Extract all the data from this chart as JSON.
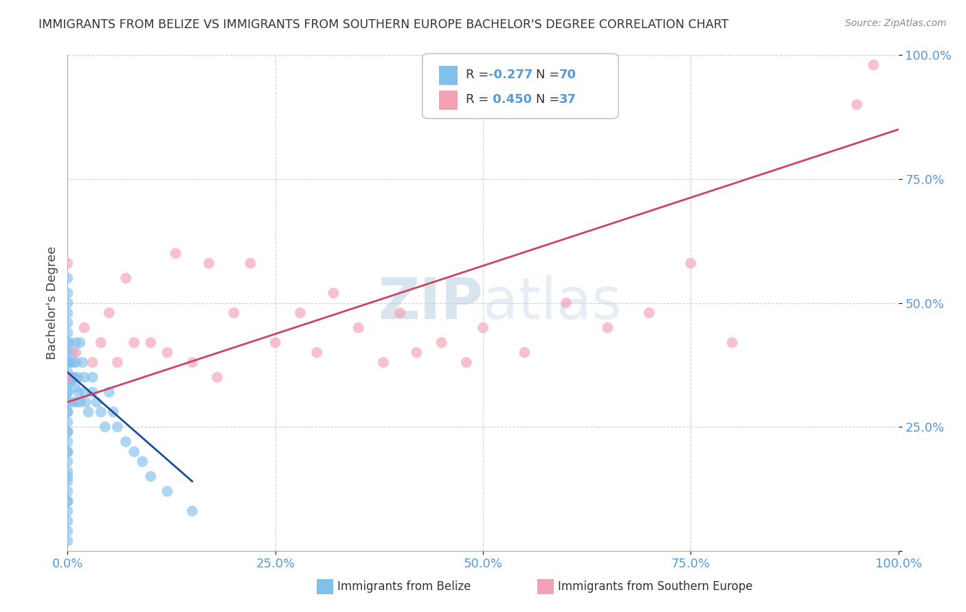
{
  "title": "IMMIGRANTS FROM BELIZE VS IMMIGRANTS FROM SOUTHERN EUROPE BACHELOR'S DEGREE CORRELATION CHART",
  "source": "Source: ZipAtlas.com",
  "ylabel": "Bachelor's Degree",
  "watermark": "ZIPatlas",
  "belize_color": "#82C0EC",
  "southern_color": "#F4A0B5",
  "belize_line_color": "#1A4A9A",
  "southern_line_color": "#D04060",
  "background_color": "#FFFFFF",
  "grid_color": "#CCCCCC",
  "title_color": "#333333",
  "tick_color": "#5599DD",
  "xlim": [
    0.0,
    1.0
  ],
  "ylim": [
    0.0,
    1.0
  ],
  "belize_scatter_x": [
    0.0,
    0.0,
    0.0,
    0.0,
    0.0,
    0.0,
    0.0,
    0.0,
    0.0,
    0.0,
    0.0,
    0.0,
    0.0,
    0.0,
    0.0,
    0.0,
    0.0,
    0.0,
    0.0,
    0.0,
    0.0,
    0.0,
    0.0,
    0.0,
    0.0,
    0.0,
    0.0,
    0.0,
    0.0,
    0.0,
    0.0,
    0.0,
    0.0,
    0.0,
    0.0,
    0.002,
    0.003,
    0.004,
    0.005,
    0.005,
    0.006,
    0.007,
    0.008,
    0.009,
    0.01,
    0.01,
    0.01,
    0.012,
    0.013,
    0.015,
    0.015,
    0.018,
    0.02,
    0.02,
    0.022,
    0.025,
    0.03,
    0.03,
    0.035,
    0.04,
    0.045,
    0.05,
    0.055,
    0.06,
    0.07,
    0.08,
    0.09,
    0.1,
    0.12,
    0.15
  ],
  "belize_scatter_y": [
    0.55,
    0.52,
    0.5,
    0.48,
    0.46,
    0.44,
    0.42,
    0.4,
    0.38,
    0.36,
    0.34,
    0.32,
    0.3,
    0.28,
    0.26,
    0.24,
    0.22,
    0.2,
    0.18,
    0.16,
    0.14,
    0.12,
    0.1,
    0.08,
    0.06,
    0.04,
    0.02,
    0.38,
    0.35,
    0.32,
    0.28,
    0.24,
    0.2,
    0.15,
    0.1,
    0.42,
    0.38,
    0.34,
    0.3,
    0.35,
    0.4,
    0.38,
    0.35,
    0.33,
    0.3,
    0.42,
    0.38,
    0.35,
    0.32,
    0.3,
    0.42,
    0.38,
    0.35,
    0.32,
    0.3,
    0.28,
    0.35,
    0.32,
    0.3,
    0.28,
    0.25,
    0.32,
    0.28,
    0.25,
    0.22,
    0.2,
    0.18,
    0.15,
    0.12,
    0.08
  ],
  "southern_scatter_x": [
    0.0,
    0.0,
    0.01,
    0.02,
    0.03,
    0.04,
    0.05,
    0.06,
    0.07,
    0.08,
    0.1,
    0.12,
    0.13,
    0.15,
    0.17,
    0.18,
    0.2,
    0.22,
    0.25,
    0.28,
    0.3,
    0.32,
    0.35,
    0.38,
    0.4,
    0.42,
    0.45,
    0.48,
    0.5,
    0.55,
    0.6,
    0.65,
    0.7,
    0.75,
    0.8,
    0.95,
    0.97
  ],
  "southern_scatter_y": [
    0.58,
    0.35,
    0.4,
    0.45,
    0.38,
    0.42,
    0.48,
    0.38,
    0.55,
    0.42,
    0.42,
    0.4,
    0.6,
    0.38,
    0.58,
    0.35,
    0.48,
    0.58,
    0.42,
    0.48,
    0.4,
    0.52,
    0.45,
    0.38,
    0.48,
    0.4,
    0.42,
    0.38,
    0.45,
    0.4,
    0.5,
    0.45,
    0.48,
    0.58,
    0.42,
    0.9,
    0.98
  ],
  "belize_line_x": [
    0.0,
    0.15
  ],
  "belize_line_y": [
    0.36,
    0.14
  ],
  "southern_line_x": [
    0.0,
    1.0
  ],
  "southern_line_y": [
    0.3,
    0.85
  ]
}
